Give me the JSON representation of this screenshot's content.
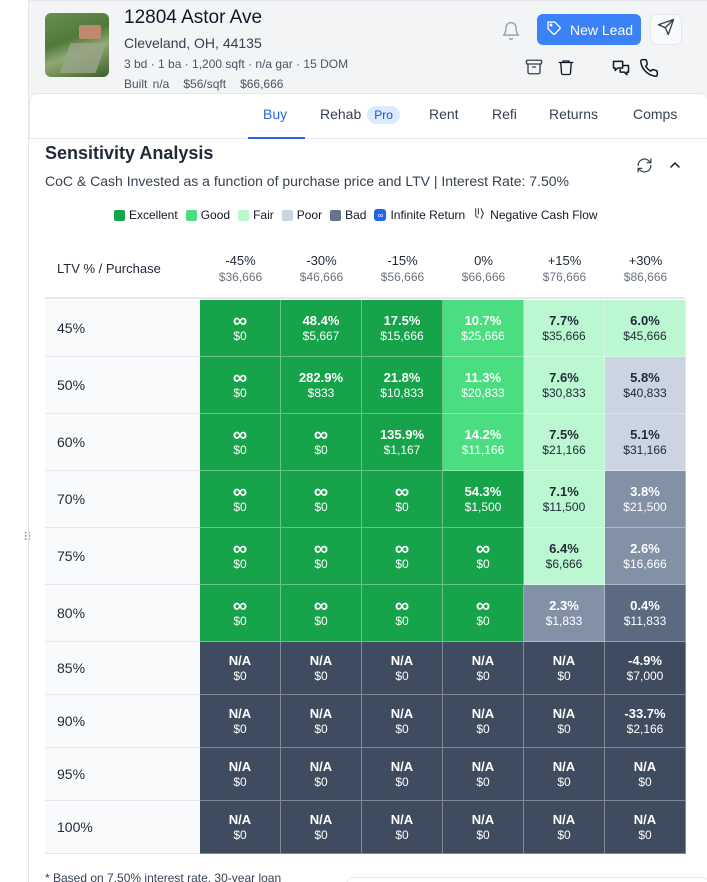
{
  "property": {
    "address": "12804 Astor Ave",
    "city_line": "Cleveland, OH, 44135",
    "specs": "3 bd · 1 ba · 1,200 sqft · n/a gar · 15 DOM",
    "built": "Built n/a",
    "price_per_sqft": "$56/sqft",
    "price": "$66,666"
  },
  "actions": {
    "new_lead_label": "New Lead"
  },
  "tabs": [
    {
      "label": "Buy",
      "active": true
    },
    {
      "label": "Rehab",
      "badge": "Pro"
    },
    {
      "label": "Rent"
    },
    {
      "label": "Refi"
    },
    {
      "label": "Returns"
    },
    {
      "label": "Comps"
    }
  ],
  "sensitivity": {
    "title": "Sensitivity Analysis",
    "subtitle": "CoC & Cash Invested as a function of purchase price and LTV | Interest Rate: 7.50%",
    "corner_label": "LTV % / Purchase",
    "legend": [
      {
        "label": "Excellent",
        "color": "#16a34a"
      },
      {
        "label": "Good",
        "color": "#4ade80"
      },
      {
        "label": "Fair",
        "color": "#bbf7d0"
      },
      {
        "label": "Poor",
        "color": "#cbd5e1"
      },
      {
        "label": "Bad",
        "color": "#64748b"
      },
      {
        "label": "Infinite Return",
        "icon": "infinity-icon"
      },
      {
        "label": "Negative Cash Flow",
        "icon": "negative-cashflow-icon"
      }
    ],
    "columns": [
      {
        "pct": "-45%",
        "price": "$36,666"
      },
      {
        "pct": "-30%",
        "price": "$46,666"
      },
      {
        "pct": "-15%",
        "price": "$56,666"
      },
      {
        "pct": "0%",
        "price": "$66,666"
      },
      {
        "pct": "+15%",
        "price": "$76,666"
      },
      {
        "pct": "+30%",
        "price": "$86,666"
      }
    ],
    "rows": [
      {
        "ltv": "45%",
        "cells": [
          {
            "coc": "∞",
            "cash": "$0",
            "rating": "excellent"
          },
          {
            "coc": "48.4%",
            "cash": "$5,667",
            "rating": "excellent"
          },
          {
            "coc": "17.5%",
            "cash": "$15,666",
            "rating": "excellent"
          },
          {
            "coc": "10.7%",
            "cash": "$25,666",
            "rating": "good"
          },
          {
            "coc": "7.7%",
            "cash": "$35,666",
            "rating": "fair"
          },
          {
            "coc": "6.0%",
            "cash": "$45,666",
            "rating": "fair"
          }
        ]
      },
      {
        "ltv": "50%",
        "cells": [
          {
            "coc": "∞",
            "cash": "$0",
            "rating": "excellent"
          },
          {
            "coc": "282.9%",
            "cash": "$833",
            "rating": "excellent"
          },
          {
            "coc": "21.8%",
            "cash": "$10,833",
            "rating": "excellent"
          },
          {
            "coc": "11.3%",
            "cash": "$20,833",
            "rating": "good"
          },
          {
            "coc": "7.6%",
            "cash": "$30,833",
            "rating": "fair"
          },
          {
            "coc": "5.8%",
            "cash": "$40,833",
            "rating": "poor"
          }
        ]
      },
      {
        "ltv": "60%",
        "cells": [
          {
            "coc": "∞",
            "cash": "$0",
            "rating": "excellent"
          },
          {
            "coc": "∞",
            "cash": "$0",
            "rating": "excellent"
          },
          {
            "coc": "135.9%",
            "cash": "$1,167",
            "rating": "excellent"
          },
          {
            "coc": "14.2%",
            "cash": "$11,166",
            "rating": "good"
          },
          {
            "coc": "7.5%",
            "cash": "$21,166",
            "rating": "fair"
          },
          {
            "coc": "5.1%",
            "cash": "$31,166",
            "rating": "poor"
          }
        ]
      },
      {
        "ltv": "70%",
        "cells": [
          {
            "coc": "∞",
            "cash": "$0",
            "rating": "excellent"
          },
          {
            "coc": "∞",
            "cash": "$0",
            "rating": "excellent"
          },
          {
            "coc": "∞",
            "cash": "$0",
            "rating": "excellent"
          },
          {
            "coc": "54.3%",
            "cash": "$1,500",
            "rating": "excellent"
          },
          {
            "coc": "7.1%",
            "cash": "$11,500",
            "rating": "fair"
          },
          {
            "coc": "3.8%",
            "cash": "$21,500",
            "rating": "bad"
          }
        ]
      },
      {
        "ltv": "75%",
        "cells": [
          {
            "coc": "∞",
            "cash": "$0",
            "rating": "excellent"
          },
          {
            "coc": "∞",
            "cash": "$0",
            "rating": "excellent"
          },
          {
            "coc": "∞",
            "cash": "$0",
            "rating": "excellent"
          },
          {
            "coc": "∞",
            "cash": "$0",
            "rating": "excellent"
          },
          {
            "coc": "6.4%",
            "cash": "$6,666",
            "rating": "fair"
          },
          {
            "coc": "2.6%",
            "cash": "$16,666",
            "rating": "bad"
          }
        ]
      },
      {
        "ltv": "80%",
        "cells": [
          {
            "coc": "∞",
            "cash": "$0",
            "rating": "excellent"
          },
          {
            "coc": "∞",
            "cash": "$0",
            "rating": "excellent"
          },
          {
            "coc": "∞",
            "cash": "$0",
            "rating": "excellent"
          },
          {
            "coc": "∞",
            "cash": "$0",
            "rating": "excellent"
          },
          {
            "coc": "2.3%",
            "cash": "$1,833",
            "rating": "bad"
          },
          {
            "coc": "0.4%",
            "cash": "$11,833",
            "rating": "worse"
          }
        ]
      },
      {
        "ltv": "85%",
        "cells": [
          {
            "coc": "N/A",
            "cash": "$0",
            "rating": "na"
          },
          {
            "coc": "N/A",
            "cash": "$0",
            "rating": "na"
          },
          {
            "coc": "N/A",
            "cash": "$0",
            "rating": "na"
          },
          {
            "coc": "N/A",
            "cash": "$0",
            "rating": "na"
          },
          {
            "coc": "N/A",
            "cash": "$0",
            "rating": "na"
          },
          {
            "coc": "-4.9%",
            "cash": "$7,000",
            "rating": "na"
          }
        ]
      },
      {
        "ltv": "90%",
        "cells": [
          {
            "coc": "N/A",
            "cash": "$0",
            "rating": "na"
          },
          {
            "coc": "N/A",
            "cash": "$0",
            "rating": "na"
          },
          {
            "coc": "N/A",
            "cash": "$0",
            "rating": "na"
          },
          {
            "coc": "N/A",
            "cash": "$0",
            "rating": "na"
          },
          {
            "coc": "N/A",
            "cash": "$0",
            "rating": "na"
          },
          {
            "coc": "-33.7%",
            "cash": "$2,166",
            "rating": "na"
          }
        ]
      },
      {
        "ltv": "95%",
        "cells": [
          {
            "coc": "N/A",
            "cash": "$0",
            "rating": "na"
          },
          {
            "coc": "N/A",
            "cash": "$0",
            "rating": "na"
          },
          {
            "coc": "N/A",
            "cash": "$0",
            "rating": "na"
          },
          {
            "coc": "N/A",
            "cash": "$0",
            "rating": "na"
          },
          {
            "coc": "N/A",
            "cash": "$0",
            "rating": "na"
          },
          {
            "coc": "N/A",
            "cash": "$0",
            "rating": "na"
          }
        ]
      },
      {
        "ltv": "100%",
        "cells": [
          {
            "coc": "N/A",
            "cash": "$0",
            "rating": "na"
          },
          {
            "coc": "N/A",
            "cash": "$0",
            "rating": "na"
          },
          {
            "coc": "N/A",
            "cash": "$0",
            "rating": "na"
          },
          {
            "coc": "N/A",
            "cash": "$0",
            "rating": "na"
          },
          {
            "coc": "N/A",
            "cash": "$0",
            "rating": "na"
          },
          {
            "coc": "N/A",
            "cash": "$0",
            "rating": "na"
          }
        ]
      }
    ],
    "footnote": "* Based on 7.50% interest rate, 30-year loan"
  },
  "rating_colors": {
    "excellent": {
      "bg": "#16a34a",
      "fg": "#ffffff"
    },
    "good": {
      "bg": "#4ade80",
      "fg": "#ffffff"
    },
    "fair": {
      "bg": "#bbf7d0",
      "fg": "#1f2937"
    },
    "poor": {
      "bg": "#cbd5e1",
      "fg": "#1f2937"
    },
    "bad": {
      "bg": "#8391a7",
      "fg": "#ffffff"
    },
    "worse": {
      "bg": "#5b6a80",
      "fg": "#ffffff"
    },
    "na": {
      "bg": "#3f4b5e",
      "fg": "#ffffff"
    }
  }
}
